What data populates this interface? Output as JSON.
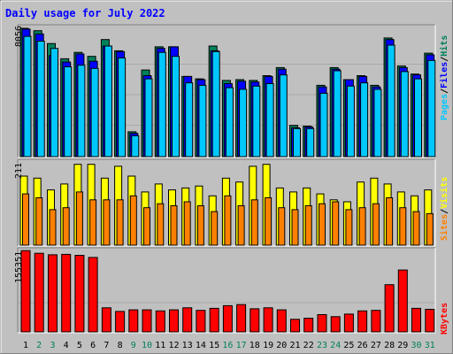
{
  "title": "Daily usage for July 2022",
  "colors": {
    "frame": "#c0c0c0",
    "plot": "#c0c0c0",
    "title": "#0000ff",
    "hits": "#00805c",
    "files": "#0000ff",
    "pages": "#00c8ff",
    "visits": "#ffff00",
    "sites": "#ff8000",
    "kbytes": "#ff0000",
    "day": "#000000",
    "weekend_day": "#00805c"
  },
  "panel_labels": {
    "top": {
      "pages": "Pages",
      "files": "Files",
      "hits": "Hits",
      "sep": "/"
    },
    "mid": {
      "sites": "Sites",
      "visits": "Visits",
      "sep": "/"
    },
    "bot": {
      "kbytes": "KBytes"
    }
  },
  "chart_data": {
    "type": "bar",
    "title": "Daily usage for July 2022",
    "categories": [
      "1",
      "2",
      "3",
      "4",
      "5",
      "6",
      "7",
      "8",
      "9",
      "10",
      "11",
      "12",
      "13",
      "14",
      "15",
      "16",
      "17",
      "18",
      "19",
      "20",
      "21",
      "22",
      "23",
      "24",
      "25",
      "26",
      "27",
      "28",
      "29",
      "30",
      "31"
    ],
    "weekend_days": [
      "2",
      "3",
      "9",
      "10",
      "16",
      "17",
      "23",
      "24",
      "30",
      "31"
    ],
    "panels": [
      {
        "id": "top",
        "ymax_label": "8056",
        "ymax": 8056,
        "series": [
          {
            "name": "Hits",
            "values": [
              8000,
              7850,
              7050,
              6100,
              6500,
              6250,
              7300,
              6600,
              1550,
              5400,
              6850,
              6850,
              5000,
              4850,
              6900,
              4750,
              4800,
              4750,
              5050,
              5550,
              1950,
              1900,
              4450,
              5550,
              4800,
              5050,
              4450,
              7400,
              5650,
              5150,
              6450
            ]
          },
          {
            "name": "Files",
            "values": [
              7950,
              7650,
              6300,
              5900,
              6400,
              5950,
              6900,
              6550,
              1450,
              5050,
              6750,
              6850,
              5000,
              4800,
              6600,
              4550,
              4700,
              4650,
              5000,
              5450,
              1800,
              1850,
              4350,
              5450,
              4800,
              5000,
              4350,
              7300,
              5550,
              5100,
              6350
            ]
          },
          {
            "name": "Pages",
            "values": [
              7500,
              7200,
              6750,
              5600,
              5700,
              5500,
              6900,
              6150,
              1300,
              4850,
              6500,
              6250,
              4600,
              4450,
              6550,
              4300,
              4200,
              4400,
              4550,
              5100,
              1750,
              1750,
              3950,
              5350,
              4400,
              4600,
              4200,
              6950,
              5300,
              4850,
              6000
            ]
          }
        ]
      },
      {
        "id": "mid",
        "ymax_label": "211",
        "ymax": 211,
        "series": [
          {
            "name": "Visits",
            "values": [
              175,
              170,
              140,
              155,
              205,
              205,
              170,
              200,
              175,
              135,
              155,
              140,
              145,
              150,
              125,
              170,
              160,
              200,
              205,
              145,
              135,
              145,
              130,
              115,
              110,
              160,
              170,
              155,
              135,
              125,
              140
            ]
          },
          {
            "name": "Sites",
            "values": [
              130,
              120,
              90,
              95,
              135,
              115,
              115,
              115,
              125,
              95,
              105,
              100,
              110,
              100,
              85,
              125,
              100,
              115,
              120,
              95,
              90,
              100,
              105,
              110,
              90,
              95,
              105,
              120,
              95,
              85,
              80
            ]
          }
        ]
      },
      {
        "id": "bot",
        "ymax_label": "155351",
        "ymax": 155351,
        "series": [
          {
            "name": "KBytes",
            "values": [
              155000,
              150000,
              147000,
              148000,
              146000,
              142000,
              46000,
              39000,
              42000,
              42000,
              40000,
              42000,
              46000,
              41000,
              45000,
              50000,
              52000,
              44000,
              46000,
              42000,
              24000,
              26000,
              33000,
              29000,
              34000,
              40000,
              41000,
              90000,
              118000,
              45000,
              43000
            ]
          }
        ]
      }
    ]
  }
}
